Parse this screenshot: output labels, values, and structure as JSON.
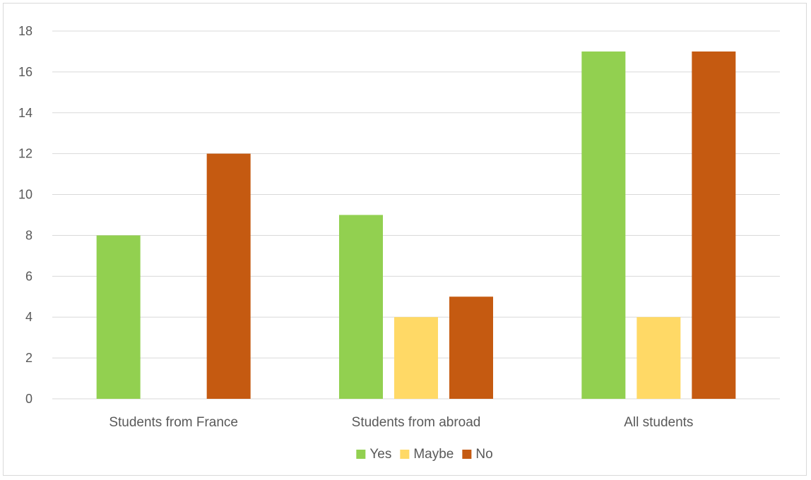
{
  "chart_data": {
    "type": "bar",
    "title": "",
    "xlabel": "",
    "ylabel": "",
    "categories": [
      "Students from France",
      "Students from abroad",
      "All students"
    ],
    "series": [
      {
        "name": "Yes",
        "values": [
          8,
          9,
          17
        ],
        "color": "#92d050"
      },
      {
        "name": "Maybe",
        "values": [
          0,
          4,
          4
        ],
        "color": "#ffd966"
      },
      {
        "name": "No",
        "values": [
          12,
          5,
          17
        ],
        "color": "#c55a11"
      }
    ],
    "ylim": [
      0,
      18
    ],
    "yticks": [
      0,
      2,
      4,
      6,
      8,
      10,
      12,
      14,
      16,
      18
    ],
    "grid": true,
    "legend": "bottom",
    "gridline_color": "#d9d9d9",
    "text_color": "#595959"
  }
}
